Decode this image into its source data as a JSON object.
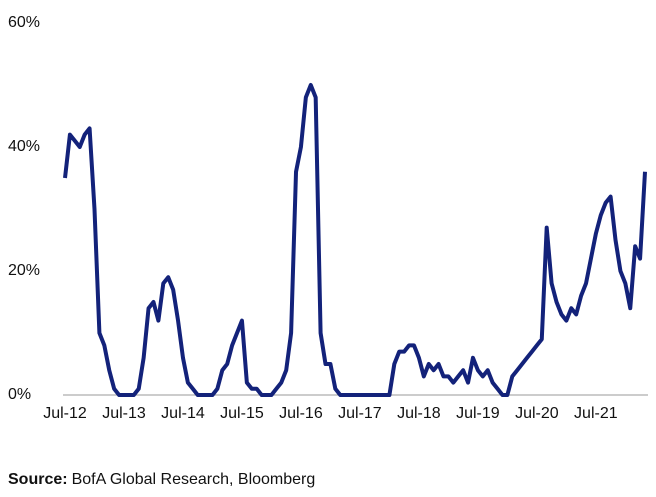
{
  "chart_data": {
    "type": "line",
    "x": [
      "Jul-12",
      "Aug-12",
      "Sep-12",
      "Oct-12",
      "Nov-12",
      "Dec-12",
      "Jan-13",
      "Feb-13",
      "Mar-13",
      "Apr-13",
      "May-13",
      "Jun-13",
      "Jul-13",
      "Aug-13",
      "Sep-13",
      "Oct-13",
      "Nov-13",
      "Dec-13",
      "Jan-14",
      "Feb-14",
      "Mar-14",
      "Apr-14",
      "May-14",
      "Jun-14",
      "Jul-14",
      "Aug-14",
      "Sep-14",
      "Oct-14",
      "Nov-14",
      "Dec-14",
      "Jan-15",
      "Feb-15",
      "Mar-15",
      "Apr-15",
      "May-15",
      "Jun-15",
      "Jul-15",
      "Aug-15",
      "Sep-15",
      "Oct-15",
      "Nov-15",
      "Dec-15",
      "Jan-16",
      "Feb-16",
      "Mar-16",
      "Apr-16",
      "May-16",
      "Jun-16",
      "Jul-16",
      "Aug-16",
      "Sep-16",
      "Oct-16",
      "Nov-16",
      "Dec-16",
      "Jan-17",
      "Feb-17",
      "Mar-17",
      "Apr-17",
      "May-17",
      "Jun-17",
      "Jul-17",
      "Aug-17",
      "Sep-17",
      "Oct-17",
      "Nov-17",
      "Dec-17",
      "Jan-18",
      "Feb-18",
      "Mar-18",
      "Apr-18",
      "May-18",
      "Jun-18",
      "Jul-18",
      "Aug-18",
      "Sep-18",
      "Oct-18",
      "Nov-18",
      "Dec-18",
      "Jan-19",
      "Feb-19",
      "Mar-19",
      "Apr-19",
      "May-19",
      "Jun-19",
      "Jul-19",
      "Aug-19",
      "Sep-19",
      "Oct-19",
      "Nov-19",
      "Dec-19",
      "Jan-20",
      "Feb-20",
      "Mar-20",
      "Apr-20",
      "May-20",
      "Jun-20",
      "Jul-20",
      "Aug-20",
      "Sep-20",
      "Oct-20",
      "Nov-20",
      "Dec-20",
      "Jan-21",
      "Feb-21",
      "Mar-21",
      "Apr-21",
      "May-21",
      "Jun-21",
      "Jul-21",
      "Aug-21",
      "Sep-21",
      "Oct-21",
      "Nov-21",
      "Dec-21",
      "Jan-22",
      "Feb-22",
      "Mar-22",
      "Apr-22",
      "May-22"
    ],
    "series": [
      {
        "color": "#13227a",
        "values": [
          35,
          42,
          41,
          40,
          42,
          43,
          30,
          10,
          8,
          4,
          1,
          0,
          0,
          0,
          0,
          1,
          6,
          14,
          15,
          12,
          18,
          19,
          17,
          12,
          6,
          2,
          1,
          0,
          0,
          0,
          0,
          1,
          4,
          5,
          8,
          10,
          12,
          2,
          1,
          1,
          0,
          0,
          0,
          1,
          2,
          4,
          10,
          36,
          40,
          48,
          50,
          48,
          10,
          5,
          5,
          1,
          0,
          0,
          0,
          0,
          0,
          0,
          0,
          0,
          0,
          0,
          0,
          5,
          7,
          7,
          8,
          8,
          6,
          3,
          5,
          4,
          5,
          3,
          3,
          2,
          3,
          4,
          2,
          6,
          4,
          3,
          4,
          2,
          1,
          0,
          0,
          3,
          4,
          5,
          6,
          7,
          8,
          9,
          27,
          18,
          15,
          13,
          12,
          14,
          13,
          16,
          18,
          22,
          26,
          29,
          31,
          32,
          25,
          20,
          18,
          14,
          24,
          22,
          36
        ]
      }
    ],
    "ylim": [
      0,
      60
    ],
    "yticks": [
      {
        "value": 0,
        "label": "0%"
      },
      {
        "value": 20,
        "label": "20%"
      },
      {
        "value": 40,
        "label": "40%"
      },
      {
        "value": 60,
        "label": "60%"
      }
    ],
    "xticks": [
      "Jul-12",
      "Jul-13",
      "Jul-14",
      "Jul-15",
      "Jul-16",
      "Jul-17",
      "Jul-18",
      "Jul-19",
      "Jul-20",
      "Jul-21"
    ],
    "source_label": "Source:",
    "source_text": "BofA Global Research, Bloomberg"
  }
}
